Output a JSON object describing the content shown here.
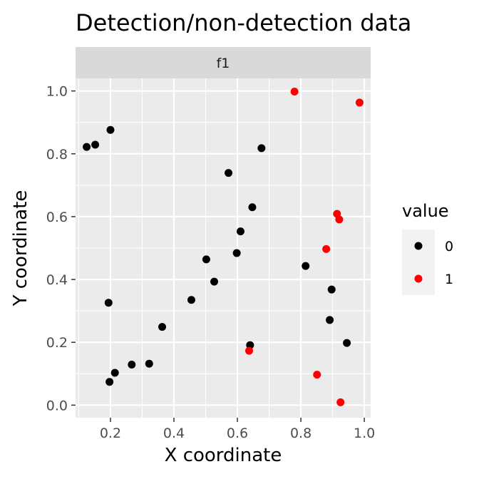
{
  "chart_data": {
    "type": "scatter",
    "title": "Detection/non-detection data",
    "xlabel": "X coordinate",
    "ylabel": "Y coordinate",
    "facet_label": "f1",
    "xlim": [
      0.09,
      1.02
    ],
    "ylim": [
      -0.04,
      1.04
    ],
    "x_ticks": [
      0.2,
      0.4,
      0.6,
      0.8,
      1.0
    ],
    "x_tick_labels": [
      "0.2",
      "0.4",
      "0.6",
      "0.8",
      "1.0"
    ],
    "y_ticks": [
      0.0,
      0.2,
      0.4,
      0.6,
      0.8,
      1.0
    ],
    "y_tick_labels": [
      "0.0",
      "0.2",
      "0.4",
      "0.6",
      "0.8",
      "1.0"
    ],
    "grid": true,
    "legend": {
      "title": "value",
      "placement": "right",
      "entries": [
        {
          "label": "0",
          "color": "#000000"
        },
        {
          "label": "1",
          "color": "#ff0000"
        }
      ]
    },
    "series": [
      {
        "name": "0",
        "color": "#000000",
        "points": [
          {
            "x": 0.125,
            "y": 0.822
          },
          {
            "x": 0.152,
            "y": 0.829
          },
          {
            "x": 0.2,
            "y": 0.876
          },
          {
            "x": 0.194,
            "y": 0.326
          },
          {
            "x": 0.197,
            "y": 0.074
          },
          {
            "x": 0.214,
            "y": 0.103
          },
          {
            "x": 0.267,
            "y": 0.129
          },
          {
            "x": 0.322,
            "y": 0.132
          },
          {
            "x": 0.363,
            "y": 0.249
          },
          {
            "x": 0.455,
            "y": 0.335
          },
          {
            "x": 0.502,
            "y": 0.464
          },
          {
            "x": 0.527,
            "y": 0.393
          },
          {
            "x": 0.572,
            "y": 0.739
          },
          {
            "x": 0.598,
            "y": 0.484
          },
          {
            "x": 0.61,
            "y": 0.553
          },
          {
            "x": 0.64,
            "y": 0.191
          },
          {
            "x": 0.647,
            "y": 0.63
          },
          {
            "x": 0.676,
            "y": 0.818
          },
          {
            "x": 0.815,
            "y": 0.443
          },
          {
            "x": 0.891,
            "y": 0.271
          },
          {
            "x": 0.897,
            "y": 0.368
          },
          {
            "x": 0.945,
            "y": 0.198
          }
        ]
      },
      {
        "name": "1",
        "color": "#ff0000",
        "points": [
          {
            "x": 0.637,
            "y": 0.173
          },
          {
            "x": 0.78,
            "y": 0.998
          },
          {
            "x": 0.851,
            "y": 0.097
          },
          {
            "x": 0.88,
            "y": 0.497
          },
          {
            "x": 0.914,
            "y": 0.609
          },
          {
            "x": 0.921,
            "y": 0.591
          },
          {
            "x": 0.925,
            "y": 0.009
          },
          {
            "x": 0.985,
            "y": 0.963
          }
        ]
      }
    ]
  }
}
